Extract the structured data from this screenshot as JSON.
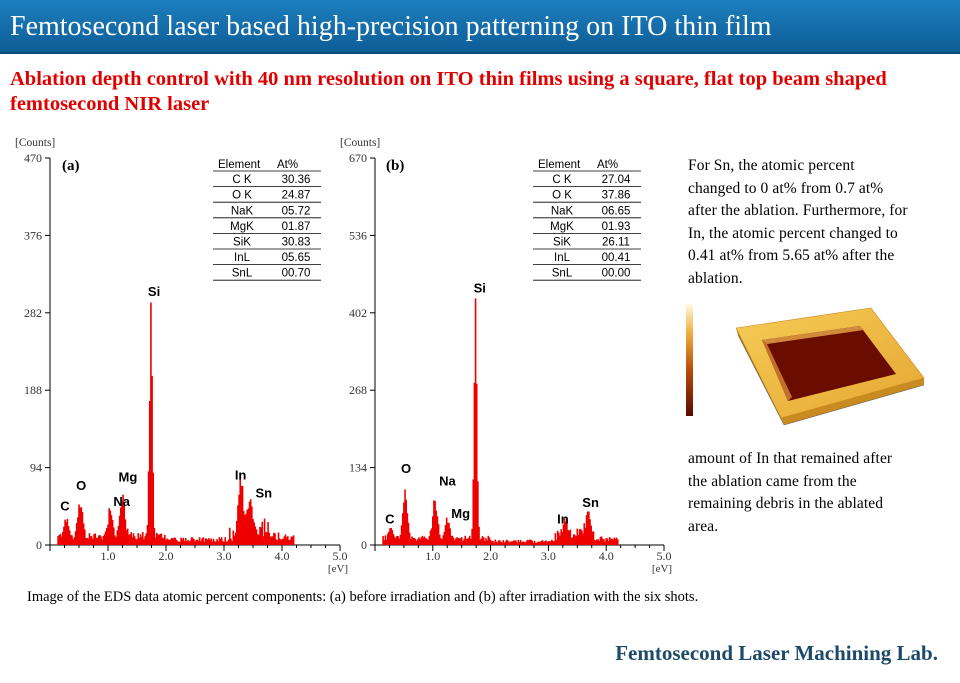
{
  "header": {
    "title": "Femtosecond laser based high-precision patterning on ITO thin film",
    "subtitle": "Ablation depth control with 40 nm resolution on ITO thin films using a square, flat top beam shaped femtosecond NIR laser"
  },
  "colors": {
    "banner": "#1570ad",
    "subtitle": "#e00000",
    "spectrum": "#ee0000",
    "footer": "#1d4a6a"
  },
  "chart_data": [
    {
      "type": "bar",
      "panel": "(a)",
      "ylabel": "[Counts]",
      "xlabel": "[eV]",
      "xlim": [
        0.0,
        5.0
      ],
      "ylim": [
        0,
        470
      ],
      "yticks": [
        "470",
        "376",
        "282",
        "188",
        "94",
        "0"
      ],
      "xticks": [
        "1.0",
        "2.0",
        "3.0",
        "4.0",
        "5.0"
      ],
      "peaks": [
        {
          "label": "C",
          "x": 0.28,
          "y": 25
        },
        {
          "label": "O",
          "x": 0.52,
          "y": 50
        },
        {
          "label": "Na",
          "x": 1.04,
          "y": 40
        },
        {
          "label": "Mg",
          "x": 1.25,
          "y": 60
        },
        {
          "label": "Si",
          "x": 1.74,
          "y": 290
        },
        {
          "label": "In",
          "x": 3.29,
          "y": 65
        },
        {
          "label": "Sn",
          "x": 3.44,
          "y": 48
        }
      ],
      "table": {
        "headers": [
          "Element",
          "At%"
        ],
        "rows": [
          [
            "C K",
            "30.36"
          ],
          [
            "O K",
            "24.87"
          ],
          [
            "NaK",
            "05.72"
          ],
          [
            "MgK",
            "01.87"
          ],
          [
            "SiK",
            "30.83"
          ],
          [
            "InL",
            "05.65"
          ],
          [
            "SnL",
            "00.70"
          ]
        ]
      }
    },
    {
      "type": "bar",
      "panel": "(b)",
      "ylabel": "[Counts]",
      "xlabel": "[eV]",
      "xlim": [
        0.0,
        5.0
      ],
      "ylim": [
        0,
        670
      ],
      "yticks": [
        "670",
        "536",
        "402",
        "268",
        "134",
        "0"
      ],
      "xticks": [
        "1.0",
        "2.0",
        "3.0",
        "4.0",
        "5.0"
      ],
      "peaks": [
        {
          "label": "C",
          "x": 0.28,
          "y": 20
        },
        {
          "label": "O",
          "x": 0.52,
          "y": 100
        },
        {
          "label": "Na",
          "x": 1.04,
          "y": 75
        },
        {
          "label": "Mg",
          "x": 1.25,
          "y": 40
        },
        {
          "label": "Si",
          "x": 1.74,
          "y": 420
        },
        {
          "label": "In",
          "x": 3.29,
          "y": 20
        },
        {
          "label": "Sn",
          "x": 3.69,
          "y": 45
        }
      ],
      "table": {
        "headers": [
          "Element",
          "At%"
        ],
        "rows": [
          [
            "C K",
            "27.04"
          ],
          [
            "O K",
            "37.86"
          ],
          [
            "NaK",
            "06.65"
          ],
          [
            "MgK",
            "01.93"
          ],
          [
            "SiK",
            "26.11"
          ],
          [
            "InL",
            "00.41"
          ],
          [
            "SnL",
            "00.00"
          ]
        ]
      }
    }
  ],
  "side_text_1": [
    "For Sn, the atomic percent",
    "changed to 0 at% from 0.7 at%",
    "after the ablation. Furthermore, for",
    "In, the atomic percent changed to",
    "0.41 at% from 5.65 at% after the",
    "ablation."
  ],
  "side_text_2": [
    "amount of In that remained after",
    "the ablation came from the",
    "remaining debris in the ablated",
    "area."
  ],
  "caption": "Image of the EDS data atomic percent components: (a) before irradiation and (b) after irradiation with the six shots.",
  "footer": "Femtosecond Laser Machining Lab."
}
